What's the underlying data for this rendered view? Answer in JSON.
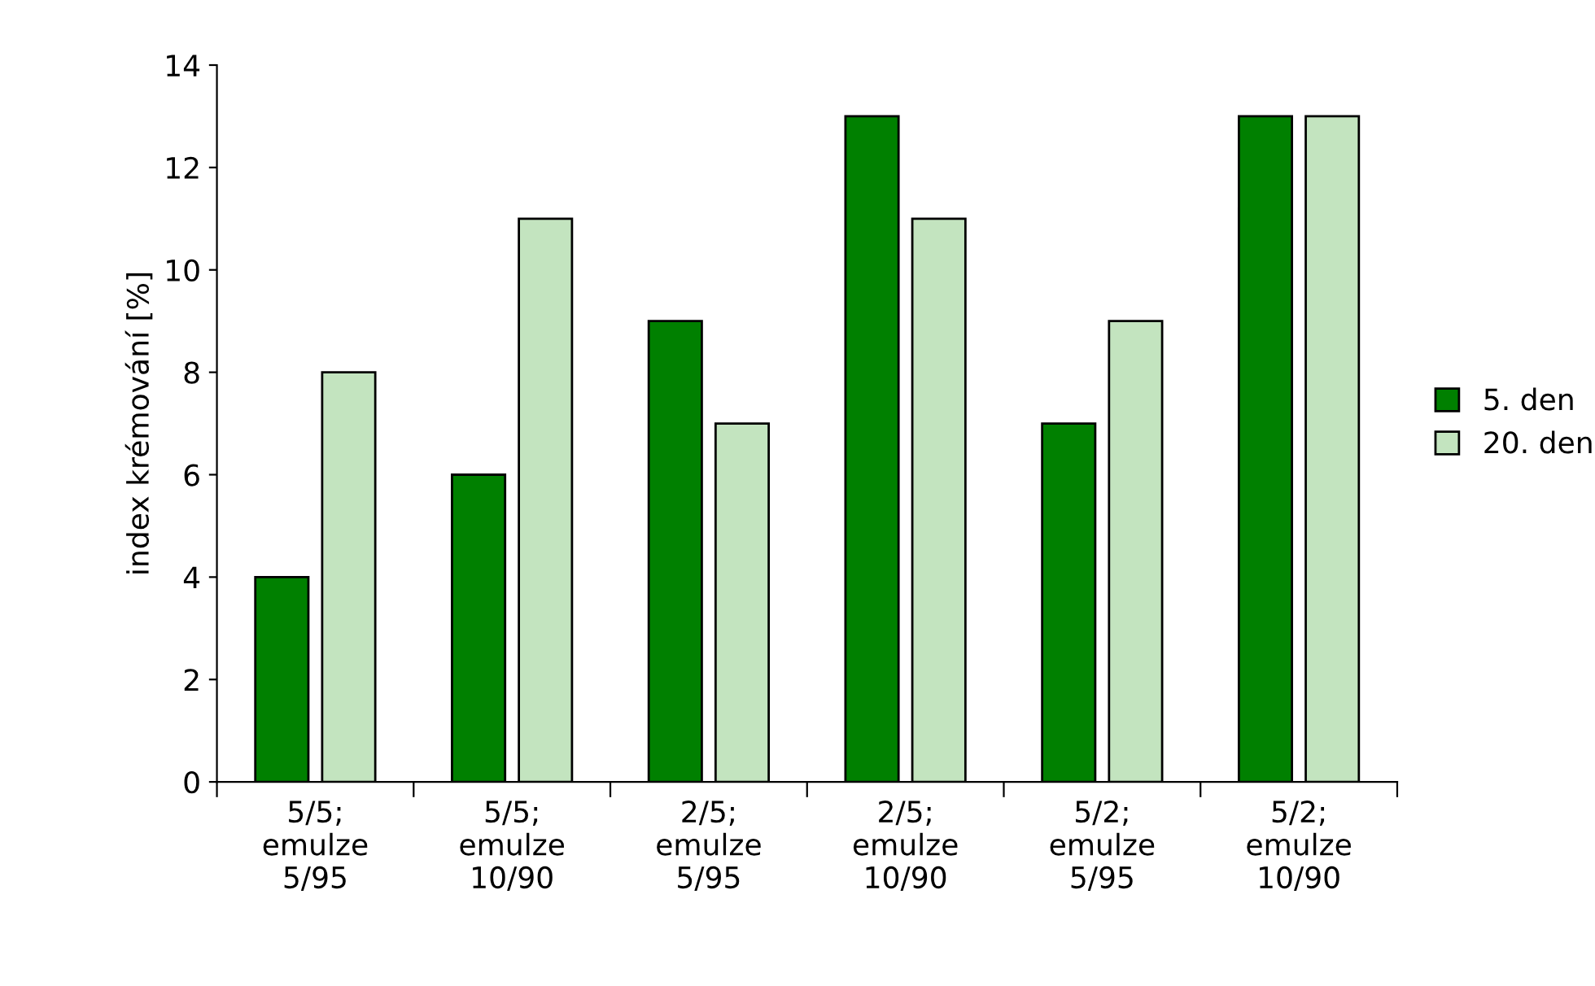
{
  "chart_data": {
    "type": "bar",
    "ylabel": "index krémování [%]",
    "categories": [
      "5/5;\nemulze\n5/95",
      "5/5;\nemulze\n10/90",
      "2/5;\nemulze\n5/95",
      "2/5;\nemulze\n10/90",
      "5/2;\nemulze\n5/95",
      "5/2;\nemulze\n10/90"
    ],
    "series": [
      {
        "name": "5. den",
        "color": "#008000",
        "values": [
          4,
          6,
          9,
          13,
          7,
          13
        ]
      },
      {
        "name": "20. den",
        "color": "#c3e4bf",
        "values": [
          8,
          11,
          7,
          11,
          9,
          13
        ]
      }
    ],
    "ylim": [
      0,
      14
    ],
    "yticks": [
      0,
      2,
      4,
      6,
      8,
      10,
      12,
      14
    ],
    "grid": false,
    "legend": "right"
  }
}
